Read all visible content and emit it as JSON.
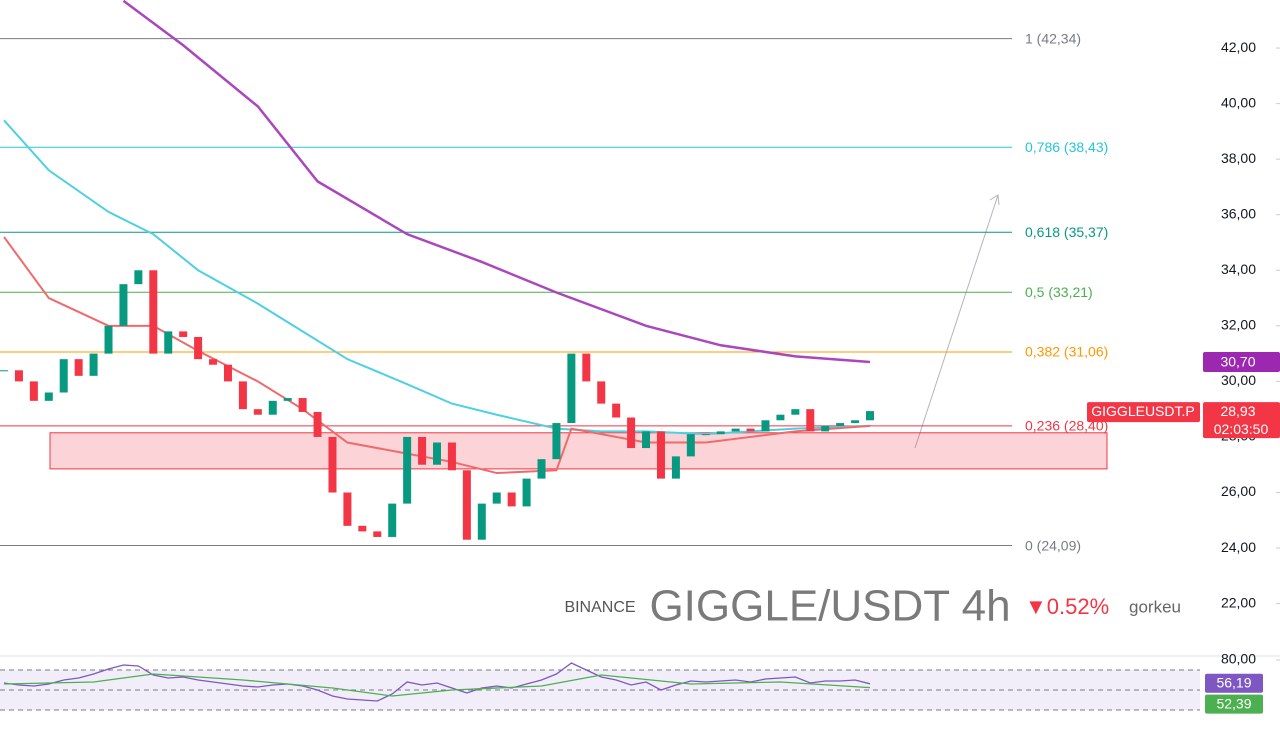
{
  "chart_data": [
    {
      "type": "candlestick",
      "ylim": [
        20.15,
        43.73
      ],
      "yticks": [
        {
          "value": 22,
          "label": "22,00"
        },
        {
          "value": 24,
          "label": "24,00"
        },
        {
          "value": 26,
          "label": "26,00"
        },
        {
          "value": 28,
          "label": "28,00"
        },
        {
          "value": 30,
          "label": "30,00"
        },
        {
          "value": 32,
          "label": "32,00"
        },
        {
          "value": 34,
          "label": "34,00"
        },
        {
          "value": 36,
          "label": "36,00"
        },
        {
          "value": 38,
          "label": "38,00"
        },
        {
          "value": 40,
          "label": "40,00"
        },
        {
          "value": 42,
          "label": "42,00"
        }
      ],
      "up_color": "#089981",
      "down_color": "#f23645",
      "values": [
        30.4,
        30.0,
        29.3,
        29.6,
        30.8,
        30.2,
        31.0,
        32.0,
        33.5,
        34.0,
        31.0,
        31.8,
        31.6,
        30.8,
        30.6,
        30.0,
        29.0,
        28.8,
        29.3,
        29.4,
        28.9,
        28.0,
        26.0,
        24.8,
        24.6,
        24.4,
        25.6,
        28.0,
        27.0,
        27.8,
        26.8,
        24.3,
        25.6,
        26.0,
        25.5,
        26.5,
        27.2,
        28.5,
        31.0,
        30.0,
        29.2,
        28.7,
        27.6,
        28.2,
        26.5,
        27.3,
        28.1,
        28.1,
        28.2,
        28.3,
        28.2,
        28.6,
        28.8,
        29.0,
        28.2,
        28.4,
        28.5,
        28.6,
        28.93
      ],
      "series": [
        {
          "color": "#ab47bc",
          "x": [
            8,
            12,
            17,
            21,
            27,
            32,
            37,
            43,
            48,
            53,
            58
          ],
          "values": [
            43.7,
            42.1,
            39.9,
            37.2,
            35.3,
            34.3,
            33.2,
            32.0,
            31.3,
            30.9,
            30.7
          ]
        },
        {
          "color": "#4dd0e1",
          "x": [
            0,
            3,
            7,
            10,
            13,
            17,
            20,
            23,
            27,
            30,
            33,
            37,
            40,
            43,
            47,
            50,
            53,
            58
          ],
          "values": [
            39.4,
            37.6,
            36.1,
            35.3,
            34.0,
            32.8,
            31.8,
            30.8,
            29.9,
            29.2,
            28.8,
            28.3,
            28.2,
            28.2,
            28.1,
            28.2,
            28.3,
            28.4
          ]
        },
        {
          "color": "#ef6b6b",
          "x": [
            0,
            3,
            7,
            10,
            13,
            17,
            20,
            23,
            27,
            30,
            33,
            37,
            38,
            40,
            43,
            47,
            50,
            53,
            58
          ],
          "values": [
            35.2,
            33.0,
            32.0,
            32.0,
            31.1,
            30.0,
            29.0,
            27.8,
            27.4,
            27.1,
            26.7,
            26.8,
            28.3,
            28.1,
            27.8,
            27.8,
            28.0,
            28.2,
            28.4
          ]
        }
      ],
      "fib_levels": [
        {
          "value": 42.34,
          "label": "1 (42,34)",
          "color": "#787b86"
        },
        {
          "value": 38.43,
          "label": "0,786 (38,43)",
          "color": "#26c6da"
        },
        {
          "value": 35.37,
          "label": "0,618 (35,37)",
          "color": "#089981"
        },
        {
          "value": 33.21,
          "label": "0,5 (33,21)",
          "color": "#4caf50"
        },
        {
          "value": 31.06,
          "label": "0,382 (31,06)",
          "color": "#ff9800"
        },
        {
          "value": 28.4,
          "label": "0,236 (28,40)",
          "color": "#f23645"
        },
        {
          "value": 24.09,
          "label": "0 (24,09)",
          "color": "#787b86"
        }
      ],
      "zone": [
        26.85,
        28.15
      ],
      "price_labels": [
        {
          "value": 30.7,
          "label": "30,70",
          "color": "#9c27b0"
        },
        {
          "value": 28.93,
          "label": "28,93",
          "color": "#f23645"
        }
      ],
      "symbol_tag": "GIGGLEUSDT.P",
      "countdown": "02:03:50",
      "exchange": "BINANCE",
      "title": "GIGGLE/USDT 4h",
      "change": "▼0.52%",
      "author": "gorkeu"
    },
    {
      "type": "line",
      "ylim": [
        9,
        84
      ],
      "yticks": [
        {
          "value": 80,
          "label": "80,00"
        }
      ],
      "levels": [
        70,
        50,
        30
      ],
      "series": [
        {
          "color": "#7e57c2",
          "values": [
            57,
            55,
            54,
            56,
            60,
            62,
            66,
            71,
            75,
            74,
            65,
            62,
            63,
            60,
            58,
            56,
            54,
            53,
            55,
            56,
            54,
            50,
            44,
            41,
            40,
            39,
            46,
            58,
            55,
            57,
            52,
            47,
            52,
            54,
            52,
            56,
            60,
            66,
            77,
            70,
            63,
            60,
            55,
            58,
            50,
            55,
            59,
            58,
            59,
            60,
            58,
            61,
            62,
            63,
            57,
            59,
            59,
            60,
            56.19
          ]
        },
        {
          "color": "#4caf50",
          "x": [
            0,
            6,
            10,
            16,
            22,
            26,
            30,
            36,
            40,
            46,
            52,
            58
          ],
          "values": [
            56,
            58,
            66,
            60,
            52,
            44,
            50,
            54,
            65,
            56,
            58,
            52.39
          ]
        }
      ],
      "value_labels": [
        {
          "value": 56.19,
          "label": "56,19",
          "color": "#7e57c2"
        },
        {
          "value": 52.39,
          "label": "52,39",
          "color": "#4caf50"
        }
      ]
    }
  ]
}
